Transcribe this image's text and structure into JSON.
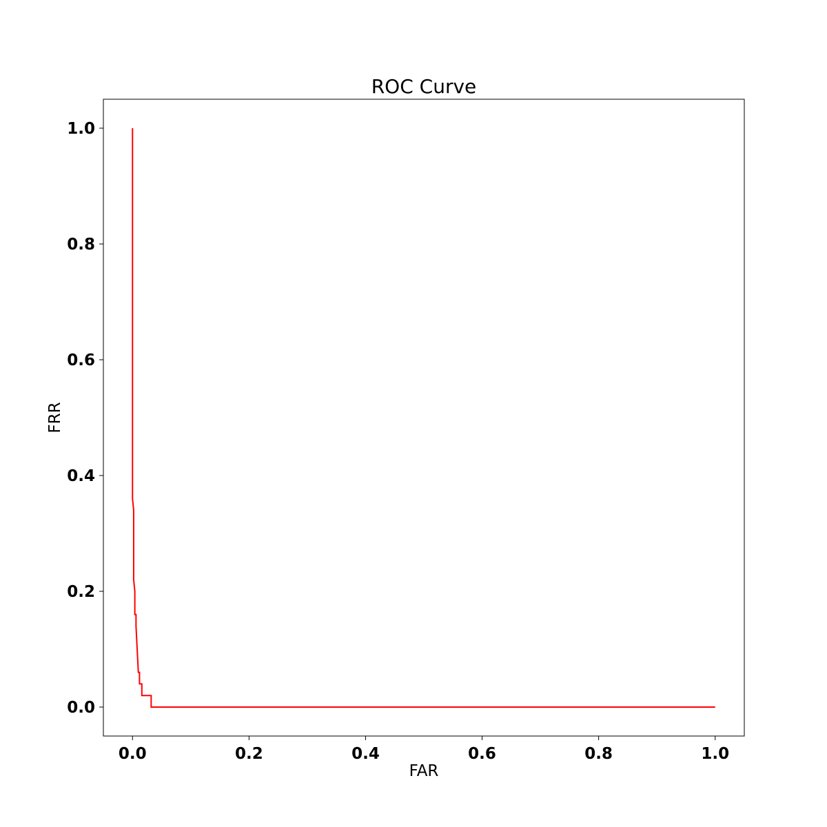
{
  "chart_data": {
    "type": "line",
    "title": "ROC Curve",
    "xlabel": "FAR",
    "ylabel": "FRR",
    "xlim": [
      -0.05,
      1.05
    ],
    "ylim": [
      -0.05,
      1.05
    ],
    "xticks": [
      0.0,
      0.2,
      0.4,
      0.6,
      0.8,
      1.0
    ],
    "xtick_labels": [
      "0.0",
      "0.2",
      "0.4",
      "0.6",
      "0.8",
      "1.0"
    ],
    "yticks": [
      0.0,
      0.2,
      0.4,
      0.6,
      0.8,
      1.0
    ],
    "ytick_labels": [
      "0.0",
      "0.2",
      "0.4",
      "0.6",
      "0.8",
      "1.0"
    ],
    "grid": false,
    "legend": "none",
    "series": [
      {
        "color": "#ff0000",
        "x": [
          0.0,
          0.0,
          0.002,
          0.002,
          0.004,
          0.004,
          0.006,
          0.006,
          0.008,
          0.01,
          0.012,
          0.012,
          0.016,
          0.016,
          0.02,
          0.02,
          0.032,
          0.032,
          1.0
        ],
        "y": [
          1.0,
          0.36,
          0.34,
          0.22,
          0.2,
          0.16,
          0.16,
          0.14,
          0.1,
          0.06,
          0.06,
          0.04,
          0.04,
          0.02,
          0.02,
          0.02,
          0.02,
          0.0,
          0.0
        ]
      }
    ]
  }
}
